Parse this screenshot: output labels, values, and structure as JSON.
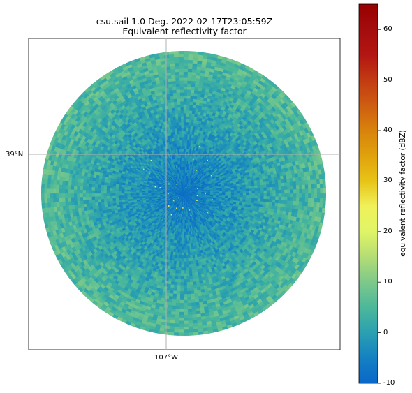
{
  "chart_data": {
    "type": "heatmap",
    "title": "csu.sail 1.0 Deg. 2022-02-17T23:05:59Z",
    "subtitle": "Equivalent reflectivity factor",
    "description_of_field": "PPI radar sweep, circular coverage, values mostly -10 to 15 dBZ, lowest near radar center",
    "gridlines": {
      "x": [
        {
          "label": "107°W"
        }
      ],
      "y": [
        {
          "label": "39°N"
        }
      ]
    },
    "grid": true,
    "colorbar": {
      "label": "equivalent reflectivity factor (dBZ)",
      "range": [
        -10,
        65
      ],
      "ticks": [
        -10,
        0,
        10,
        20,
        30,
        40,
        50,
        60
      ],
      "placement": "right",
      "stops": [
        {
          "v": -10,
          "c": "#0a67c8"
        },
        {
          "v": -5,
          "c": "#1481c2"
        },
        {
          "v": 0,
          "c": "#2aa0b1"
        },
        {
          "v": 5,
          "c": "#4cb89a"
        },
        {
          "v": 10,
          "c": "#7cc98a"
        },
        {
          "v": 15,
          "c": "#b4dd74"
        },
        {
          "v": 20,
          "c": "#e0f566"
        },
        {
          "v": 25,
          "c": "#f0f15a"
        },
        {
          "v": 30,
          "c": "#e8c417"
        },
        {
          "v": 35,
          "c": "#e0a20c"
        },
        {
          "v": 40,
          "c": "#d8830c"
        },
        {
          "v": 45,
          "c": "#ce5d10"
        },
        {
          "v": 50,
          "c": "#c23a12"
        },
        {
          "v": 55,
          "c": "#b31612"
        },
        {
          "v": 60,
          "c": "#a30d0d"
        },
        {
          "v": 65,
          "c": "#990000"
        }
      ]
    }
  }
}
